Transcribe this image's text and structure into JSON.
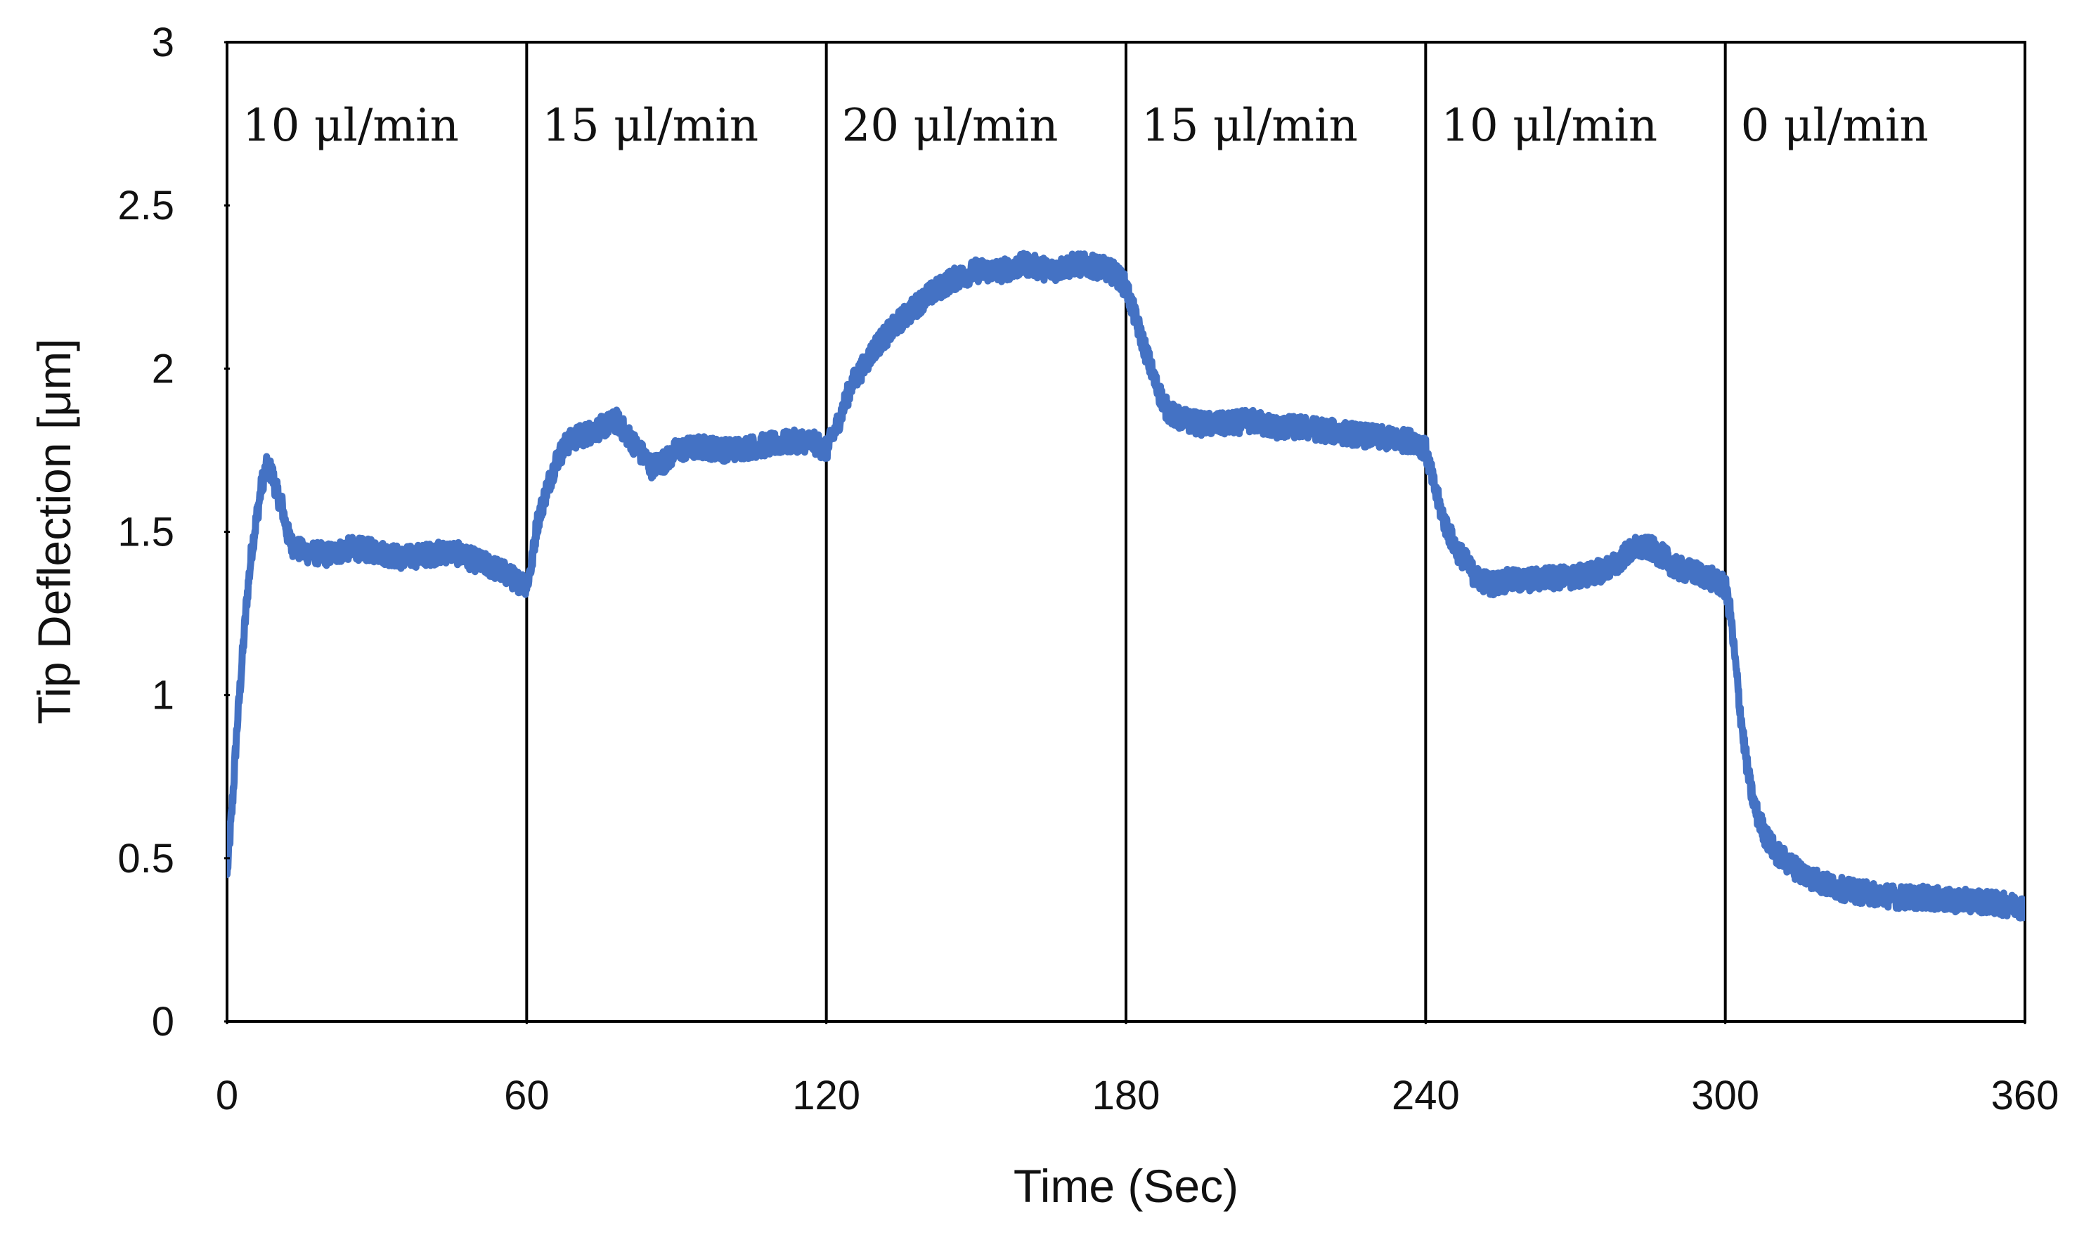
{
  "chart_data": {
    "type": "line",
    "title": "",
    "xlabel": "Time (Sec)",
    "ylabel": "Tip Deflection [μm]",
    "xlim": [
      0,
      360
    ],
    "ylim": [
      0,
      3
    ],
    "x_ticks": [
      0,
      60,
      120,
      180,
      240,
      300,
      360
    ],
    "y_ticks": [
      0,
      0.5,
      1,
      1.5,
      2,
      2.5,
      3
    ],
    "y_tick_labels": [
      "0",
      "0.5",
      "1",
      "1.5",
      "2",
      "2.5",
      "3"
    ],
    "grid": false,
    "legend": null,
    "line_color": "#4472C4",
    "noise_amplitude": 0.035,
    "region_boundaries": [
      0,
      60,
      120,
      180,
      240,
      300,
      360
    ],
    "regions": [
      {
        "label": "10 μl/min",
        "start": 0,
        "end": 60
      },
      {
        "label": "15 μl/min",
        "start": 60,
        "end": 120
      },
      {
        "label": "20 μl/min",
        "start": 120,
        "end": 180
      },
      {
        "label": "15 μl/min",
        "start": 180,
        "end": 240
      },
      {
        "label": "10 μl/min",
        "start": 240,
        "end": 300
      },
      {
        "label": "0 μl/min",
        "start": 300,
        "end": 360
      }
    ],
    "series": [
      {
        "name": "Tip Deflection",
        "points": [
          [
            0,
            0.45
          ],
          [
            1,
            0.65
          ],
          [
            2,
            0.9
          ],
          [
            3,
            1.1
          ],
          [
            4,
            1.3
          ],
          [
            5,
            1.45
          ],
          [
            6,
            1.55
          ],
          [
            7,
            1.65
          ],
          [
            8,
            1.7
          ],
          [
            9,
            1.68
          ],
          [
            10,
            1.62
          ],
          [
            11,
            1.58
          ],
          [
            12,
            1.5
          ],
          [
            13,
            1.46
          ],
          [
            15,
            1.44
          ],
          [
            20,
            1.43
          ],
          [
            25,
            1.45
          ],
          [
            30,
            1.44
          ],
          [
            35,
            1.42
          ],
          [
            40,
            1.43
          ],
          [
            45,
            1.44
          ],
          [
            50,
            1.41
          ],
          [
            55,
            1.38
          ],
          [
            58,
            1.35
          ],
          [
            60,
            1.34
          ],
          [
            61,
            1.4
          ],
          [
            62,
            1.52
          ],
          [
            64,
            1.63
          ],
          [
            66,
            1.72
          ],
          [
            68,
            1.77
          ],
          [
            70,
            1.79
          ],
          [
            72,
            1.8
          ],
          [
            75,
            1.82
          ],
          [
            78,
            1.84
          ],
          [
            80,
            1.8
          ],
          [
            83,
            1.74
          ],
          [
            85,
            1.7
          ],
          [
            88,
            1.72
          ],
          [
            90,
            1.75
          ],
          [
            95,
            1.76
          ],
          [
            100,
            1.75
          ],
          [
            105,
            1.76
          ],
          [
            110,
            1.77
          ],
          [
            115,
            1.78
          ],
          [
            118,
            1.77
          ],
          [
            120,
            1.75
          ],
          [
            122,
            1.82
          ],
          [
            125,
            1.95
          ],
          [
            128,
            2.02
          ],
          [
            130,
            2.07
          ],
          [
            135,
            2.15
          ],
          [
            140,
            2.22
          ],
          [
            145,
            2.27
          ],
          [
            150,
            2.3
          ],
          [
            155,
            2.3
          ],
          [
            160,
            2.32
          ],
          [
            165,
            2.3
          ],
          [
            170,
            2.32
          ],
          [
            175,
            2.31
          ],
          [
            178,
            2.29
          ],
          [
            180,
            2.25
          ],
          [
            182,
            2.15
          ],
          [
            184,
            2.05
          ],
          [
            186,
            1.95
          ],
          [
            188,
            1.88
          ],
          [
            190,
            1.85
          ],
          [
            195,
            1.83
          ],
          [
            200,
            1.83
          ],
          [
            205,
            1.84
          ],
          [
            210,
            1.82
          ],
          [
            215,
            1.82
          ],
          [
            220,
            1.81
          ],
          [
            225,
            1.8
          ],
          [
            230,
            1.79
          ],
          [
            235,
            1.78
          ],
          [
            238,
            1.78
          ],
          [
            240,
            1.75
          ],
          [
            242,
            1.62
          ],
          [
            244,
            1.52
          ],
          [
            246,
            1.45
          ],
          [
            248,
            1.41
          ],
          [
            250,
            1.36
          ],
          [
            253,
            1.34
          ],
          [
            256,
            1.35
          ],
          [
            260,
            1.35
          ],
          [
            265,
            1.36
          ],
          [
            270,
            1.36
          ],
          [
            275,
            1.38
          ],
          [
            278,
            1.4
          ],
          [
            280,
            1.43
          ],
          [
            282,
            1.45
          ],
          [
            285,
            1.45
          ],
          [
            288,
            1.42
          ],
          [
            290,
            1.39
          ],
          [
            295,
            1.37
          ],
          [
            298,
            1.35
          ],
          [
            300,
            1.33
          ],
          [
            301,
            1.25
          ],
          [
            302,
            1.1
          ],
          [
            303,
            0.95
          ],
          [
            304,
            0.82
          ],
          [
            305,
            0.72
          ],
          [
            306,
            0.65
          ],
          [
            308,
            0.57
          ],
          [
            310,
            0.52
          ],
          [
            313,
            0.48
          ],
          [
            316,
            0.45
          ],
          [
            320,
            0.42
          ],
          [
            325,
            0.4
          ],
          [
            330,
            0.39
          ],
          [
            335,
            0.38
          ],
          [
            340,
            0.38
          ],
          [
            345,
            0.37
          ],
          [
            350,
            0.37
          ],
          [
            355,
            0.36
          ],
          [
            360,
            0.35
          ]
        ]
      }
    ]
  }
}
